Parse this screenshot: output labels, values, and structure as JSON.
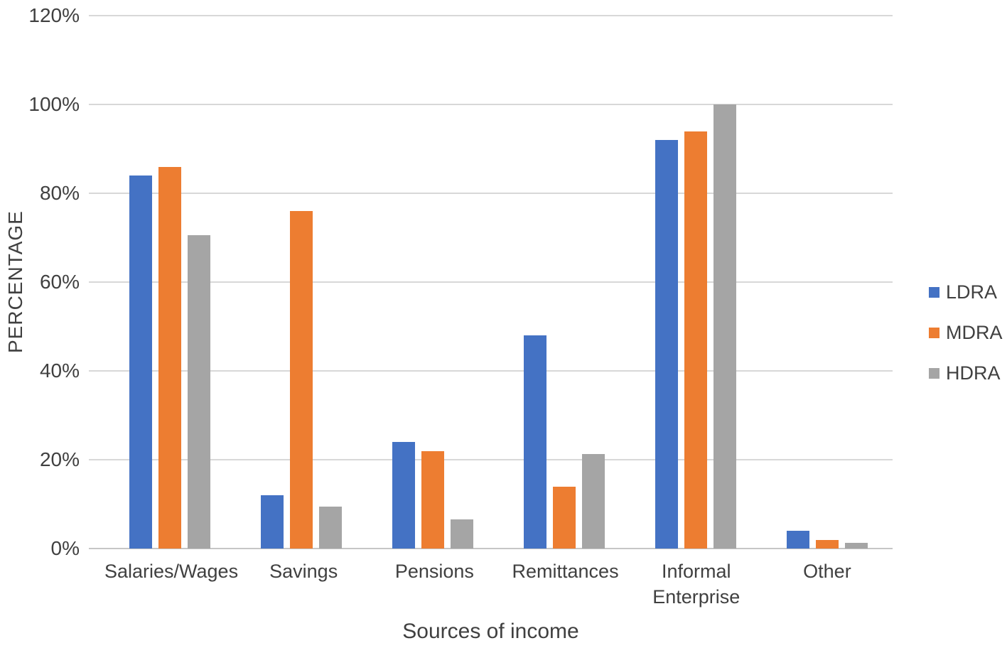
{
  "chart_data": {
    "type": "bar",
    "title": "",
    "xlabel": "Sources of income",
    "ylabel": "PERCENTAGE",
    "categories": [
      "Salaries/Wages",
      "Savings",
      "Pensions",
      "Remittances",
      "Informal Enterprise",
      "Other"
    ],
    "category_label_lines": [
      [
        "Salaries/Wages"
      ],
      [
        "Savings"
      ],
      [
        "Pensions"
      ],
      [
        "Remittances"
      ],
      [
        "Informal",
        "Enterprise"
      ],
      [
        "Other"
      ]
    ],
    "series": [
      {
        "name": "LDRA",
        "color": "#4472C4",
        "values": [
          84,
          12,
          24,
          48,
          92,
          4
        ]
      },
      {
        "name": "MDRA",
        "color": "#ED7D31",
        "values": [
          86,
          76,
          22,
          14,
          94,
          2
        ]
      },
      {
        "name": "HDRA",
        "color": "#A5A5A5",
        "values": [
          70.5,
          9.5,
          6.5,
          21.3,
          100,
          1.3
        ]
      }
    ],
    "y_axis": {
      "min": 0,
      "max": 120,
      "step": 20,
      "tick_labels": [
        "0%",
        "20%",
        "40%",
        "60%",
        "80%",
        "100%",
        "120%"
      ]
    },
    "grid": true,
    "legend_position": "right"
  },
  "colors": {
    "text": "#404040",
    "gridline": "#D8D8D8",
    "axis_line": "#C6C6C6",
    "background": "#FFFFFF"
  }
}
